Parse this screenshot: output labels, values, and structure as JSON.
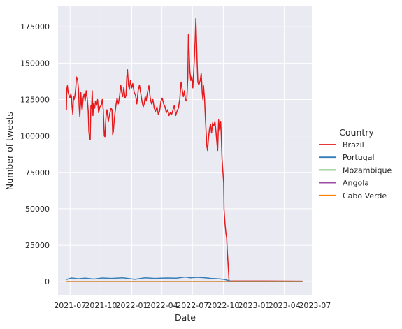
{
  "chart_data": {
    "type": "line",
    "title": "",
    "xlabel": "Date",
    "ylabel": "Number of tweets",
    "x_tick_labels": [
      "2021-07",
      "2021-10",
      "2022-01",
      "2022-04",
      "2022-07",
      "2022-10",
      "2023-01",
      "2023-04",
      "2023-07"
    ],
    "y_tick_labels": [
      "0",
      "25000",
      "50000",
      "75000",
      "100000",
      "125000",
      "150000",
      "175000"
    ],
    "y_ticks": [
      0,
      25000,
      50000,
      75000,
      100000,
      125000,
      150000,
      175000
    ],
    "xlim": [
      "2021-05-26",
      "2023-06-22"
    ],
    "ylim": [
      -9000,
      189000
    ],
    "grid": true,
    "legend": {
      "title": "Country",
      "placement": "right"
    },
    "series": [
      {
        "name": "Brazil",
        "color": "#e41a1c",
        "points": [
          [
            "2021-06-20",
            118000
          ],
          [
            "2021-06-21",
            132000
          ],
          [
            "2021-06-23",
            134500
          ],
          [
            "2021-06-25",
            130000
          ],
          [
            "2021-06-28",
            128000
          ],
          [
            "2021-07-01",
            126000
          ],
          [
            "2021-07-03",
            129000
          ],
          [
            "2021-07-05",
            127000
          ],
          [
            "2021-07-07",
            120000
          ],
          [
            "2021-07-09",
            115000
          ],
          [
            "2021-07-11",
            127000
          ],
          [
            "2021-07-13",
            125000
          ],
          [
            "2021-07-15",
            127000
          ],
          [
            "2021-07-18",
            133000
          ],
          [
            "2021-07-20",
            140500
          ],
          [
            "2021-07-23",
            139000
          ],
          [
            "2021-07-26",
            132000
          ],
          [
            "2021-07-28",
            120000
          ],
          [
            "2021-07-30",
            113000
          ],
          [
            "2021-08-02",
            130000
          ],
          [
            "2021-08-04",
            121000
          ],
          [
            "2021-08-06",
            118000
          ],
          [
            "2021-08-09",
            126000
          ],
          [
            "2021-08-12",
            129000
          ],
          [
            "2021-08-15",
            124000
          ],
          [
            "2021-08-18",
            131000
          ],
          [
            "2021-08-21",
            126000
          ],
          [
            "2021-08-24",
            117000
          ],
          [
            "2021-08-26",
            103000
          ],
          [
            "2021-08-28",
            99000
          ],
          [
            "2021-08-30",
            97500
          ],
          [
            "2021-09-01",
            121000
          ],
          [
            "2021-09-03",
            119000
          ],
          [
            "2021-09-05",
            131000
          ],
          [
            "2021-09-07",
            114000
          ],
          [
            "2021-09-09",
            122000
          ],
          [
            "2021-09-12",
            119000
          ],
          [
            "2021-09-15",
            124000
          ],
          [
            "2021-09-18",
            121000
          ],
          [
            "2021-09-21",
            125000
          ],
          [
            "2021-09-24",
            116000
          ],
          [
            "2021-09-28",
            120000
          ],
          [
            "2021-10-02",
            121000
          ],
          [
            "2021-10-05",
            125000
          ],
          [
            "2021-10-08",
            118000
          ],
          [
            "2021-10-11",
            100000
          ],
          [
            "2021-10-13",
            99500
          ],
          [
            "2021-10-16",
            113000
          ],
          [
            "2021-10-19",
            118000
          ],
          [
            "2021-10-23",
            110000
          ],
          [
            "2021-10-27",
            115000
          ],
          [
            "2021-10-31",
            119000
          ],
          [
            "2021-11-03",
            118000
          ],
          [
            "2021-11-05",
            101000
          ],
          [
            "2021-11-07",
            103000
          ],
          [
            "2021-11-10",
            112000
          ],
          [
            "2021-11-14",
            120000
          ],
          [
            "2021-11-18",
            126000
          ],
          [
            "2021-11-22",
            122000
          ],
          [
            "2021-11-26",
            128000
          ],
          [
            "2021-11-29",
            135000
          ],
          [
            "2021-12-02",
            130000
          ],
          [
            "2021-12-05",
            127000
          ],
          [
            "2021-12-08",
            133000
          ],
          [
            "2021-12-12",
            126000
          ],
          [
            "2021-12-15",
            128000
          ],
          [
            "2021-12-17",
            140000
          ],
          [
            "2021-12-19",
            145500
          ],
          [
            "2021-12-22",
            135000
          ],
          [
            "2021-12-25",
            132000
          ],
          [
            "2021-12-28",
            138000
          ],
          [
            "2022-01-01",
            133000
          ],
          [
            "2022-01-04",
            136000
          ],
          [
            "2022-01-08",
            130000
          ],
          [
            "2022-01-12",
            128000
          ],
          [
            "2022-01-16",
            122000
          ],
          [
            "2022-01-20",
            131000
          ],
          [
            "2022-01-24",
            135000
          ],
          [
            "2022-01-28",
            129000
          ],
          [
            "2022-02-01",
            123000
          ],
          [
            "2022-02-04",
            120000
          ],
          [
            "2022-02-07",
            122000
          ],
          [
            "2022-02-10",
            127000
          ],
          [
            "2022-02-13",
            124000
          ],
          [
            "2022-02-17",
            130000
          ],
          [
            "2022-02-21",
            134500
          ],
          [
            "2022-02-25",
            126000
          ],
          [
            "2022-03-01",
            122000
          ],
          [
            "2022-03-05",
            125000
          ],
          [
            "2022-03-09",
            119000
          ],
          [
            "2022-03-13",
            117000
          ],
          [
            "2022-03-17",
            120000
          ],
          [
            "2022-03-21",
            115000
          ],
          [
            "2022-03-25",
            117000
          ],
          [
            "2022-03-29",
            124000
          ],
          [
            "2022-04-02",
            126000
          ],
          [
            "2022-04-06",
            122000
          ],
          [
            "2022-04-10",
            120000
          ],
          [
            "2022-04-14",
            116000
          ],
          [
            "2022-04-18",
            118000
          ],
          [
            "2022-04-22",
            114000
          ],
          [
            "2022-04-26",
            116000
          ],
          [
            "2022-04-30",
            115000
          ],
          [
            "2022-05-04",
            118000
          ],
          [
            "2022-05-08",
            121000
          ],
          [
            "2022-05-12",
            114000
          ],
          [
            "2022-05-16",
            117000
          ],
          [
            "2022-05-20",
            119000
          ],
          [
            "2022-05-24",
            125000
          ],
          [
            "2022-05-28",
            137000
          ],
          [
            "2022-06-01",
            131000
          ],
          [
            "2022-06-04",
            127000
          ],
          [
            "2022-06-07",
            131000
          ],
          [
            "2022-06-10",
            125000
          ],
          [
            "2022-06-14",
            124000
          ],
          [
            "2022-06-17",
            140000
          ],
          [
            "2022-06-19",
            170000
          ],
          [
            "2022-06-21",
            158000
          ],
          [
            "2022-06-23",
            145000
          ],
          [
            "2022-06-26",
            138000
          ],
          [
            "2022-06-29",
            141000
          ],
          [
            "2022-07-02",
            133000
          ],
          [
            "2022-07-06",
            150000
          ],
          [
            "2022-07-09",
            165000
          ],
          [
            "2022-07-11",
            180500
          ],
          [
            "2022-07-13",
            167000
          ],
          [
            "2022-07-15",
            150000
          ],
          [
            "2022-07-17",
            137000
          ],
          [
            "2022-07-20",
            135000
          ],
          [
            "2022-07-24",
            138000
          ],
          [
            "2022-07-27",
            143000
          ],
          [
            "2022-07-30",
            130000
          ],
          [
            "2022-08-01",
            125000
          ],
          [
            "2022-08-03",
            134500
          ],
          [
            "2022-08-06",
            125000
          ],
          [
            "2022-08-09",
            110000
          ],
          [
            "2022-08-11",
            102000
          ],
          [
            "2022-08-13",
            93000
          ],
          [
            "2022-08-15",
            90000
          ],
          [
            "2022-08-18",
            99000
          ],
          [
            "2022-08-21",
            105000
          ],
          [
            "2022-08-24",
            108000
          ],
          [
            "2022-08-27",
            102000
          ],
          [
            "2022-08-30",
            109000
          ],
          [
            "2022-09-03",
            107000
          ],
          [
            "2022-09-06",
            110000
          ],
          [
            "2022-09-09",
            103000
          ],
          [
            "2022-09-12",
            95000
          ],
          [
            "2022-09-14",
            90000
          ],
          [
            "2022-09-17",
            111000
          ],
          [
            "2022-09-20",
            104000
          ],
          [
            "2022-09-23",
            110000
          ],
          [
            "2022-09-25",
            100000
          ],
          [
            "2022-09-27",
            85000
          ],
          [
            "2022-09-30",
            75000
          ],
          [
            "2022-10-02",
            68000
          ],
          [
            "2022-10-03",
            50000
          ],
          [
            "2022-10-06",
            40000
          ],
          [
            "2022-10-09",
            33000
          ],
          [
            "2022-10-11",
            30000
          ],
          [
            "2022-10-13",
            20000
          ],
          [
            "2022-10-15",
            13000
          ],
          [
            "2022-10-17",
            5000
          ],
          [
            "2022-10-18",
            500
          ],
          [
            "2023-05-25",
            300
          ]
        ]
      },
      {
        "name": "Portugal",
        "color": "#377eb8",
        "points": [
          [
            "2021-06-20",
            1500
          ],
          [
            "2021-07-05",
            2500
          ],
          [
            "2021-07-25",
            2000
          ],
          [
            "2021-08-15",
            2400
          ],
          [
            "2021-09-10",
            1800
          ],
          [
            "2021-10-05",
            2500
          ],
          [
            "2021-11-01",
            2200
          ],
          [
            "2021-12-05",
            2600
          ],
          [
            "2022-01-10",
            1600
          ],
          [
            "2022-02-10",
            2600
          ],
          [
            "2022-03-10",
            2200
          ],
          [
            "2022-04-15",
            2500
          ],
          [
            "2022-05-15",
            2400
          ],
          [
            "2022-06-10",
            3200
          ],
          [
            "2022-06-25",
            2600
          ],
          [
            "2022-07-15",
            3000
          ],
          [
            "2022-08-05",
            2700
          ],
          [
            "2022-08-25",
            2200
          ],
          [
            "2022-09-20",
            1900
          ],
          [
            "2022-10-05",
            1500
          ],
          [
            "2022-10-18",
            600
          ],
          [
            "2022-10-25",
            200
          ],
          [
            "2023-05-25",
            200
          ]
        ]
      },
      {
        "name": "Mozambique",
        "color": "#4daf4a",
        "points": [
          [
            "2021-06-20",
            50
          ],
          [
            "2023-05-25",
            50
          ]
        ]
      },
      {
        "name": "Angola",
        "color": "#984ea3",
        "points": [
          [
            "2021-06-20",
            50
          ],
          [
            "2023-05-25",
            50
          ]
        ]
      },
      {
        "name": "Cabo Verde",
        "color": "#ff7f00",
        "points": [
          [
            "2021-06-20",
            0
          ],
          [
            "2023-05-25",
            0
          ]
        ]
      }
    ]
  }
}
